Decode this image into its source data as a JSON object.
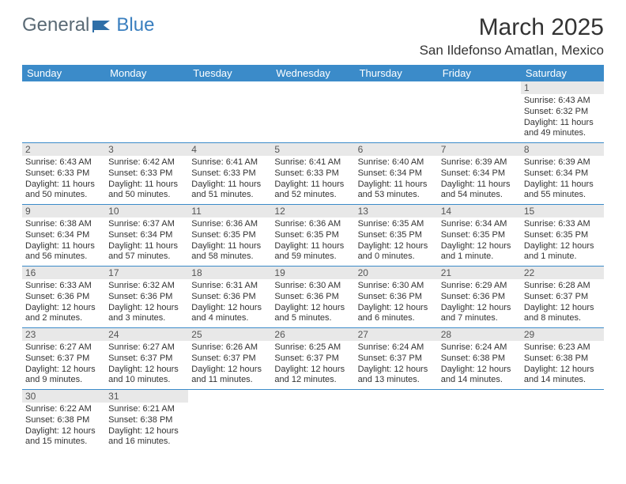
{
  "logo": {
    "general": "General",
    "blue": "Blue"
  },
  "month_title": "March 2025",
  "location": "San Ildefonso Amatlan, Mexico",
  "header_bg": "#3b8bc9",
  "header_fg": "#ffffff",
  "rule_color": "#3b8bc9",
  "daynum_bg": "#e8e8e8",
  "weekdays": [
    "Sunday",
    "Monday",
    "Tuesday",
    "Wednesday",
    "Thursday",
    "Friday",
    "Saturday"
  ],
  "weeks": [
    [
      {
        "n": "",
        "sunrise": "",
        "sunset": "",
        "daylight": ""
      },
      {
        "n": "",
        "sunrise": "",
        "sunset": "",
        "daylight": ""
      },
      {
        "n": "",
        "sunrise": "",
        "sunset": "",
        "daylight": ""
      },
      {
        "n": "",
        "sunrise": "",
        "sunset": "",
        "daylight": ""
      },
      {
        "n": "",
        "sunrise": "",
        "sunset": "",
        "daylight": ""
      },
      {
        "n": "",
        "sunrise": "",
        "sunset": "",
        "daylight": ""
      },
      {
        "n": "1",
        "sunrise": "Sunrise: 6:43 AM",
        "sunset": "Sunset: 6:32 PM",
        "daylight": "Daylight: 11 hours and 49 minutes."
      }
    ],
    [
      {
        "n": "2",
        "sunrise": "Sunrise: 6:43 AM",
        "sunset": "Sunset: 6:33 PM",
        "daylight": "Daylight: 11 hours and 50 minutes."
      },
      {
        "n": "3",
        "sunrise": "Sunrise: 6:42 AM",
        "sunset": "Sunset: 6:33 PM",
        "daylight": "Daylight: 11 hours and 50 minutes."
      },
      {
        "n": "4",
        "sunrise": "Sunrise: 6:41 AM",
        "sunset": "Sunset: 6:33 PM",
        "daylight": "Daylight: 11 hours and 51 minutes."
      },
      {
        "n": "5",
        "sunrise": "Sunrise: 6:41 AM",
        "sunset": "Sunset: 6:33 PM",
        "daylight": "Daylight: 11 hours and 52 minutes."
      },
      {
        "n": "6",
        "sunrise": "Sunrise: 6:40 AM",
        "sunset": "Sunset: 6:34 PM",
        "daylight": "Daylight: 11 hours and 53 minutes."
      },
      {
        "n": "7",
        "sunrise": "Sunrise: 6:39 AM",
        "sunset": "Sunset: 6:34 PM",
        "daylight": "Daylight: 11 hours and 54 minutes."
      },
      {
        "n": "8",
        "sunrise": "Sunrise: 6:39 AM",
        "sunset": "Sunset: 6:34 PM",
        "daylight": "Daylight: 11 hours and 55 minutes."
      }
    ],
    [
      {
        "n": "9",
        "sunrise": "Sunrise: 6:38 AM",
        "sunset": "Sunset: 6:34 PM",
        "daylight": "Daylight: 11 hours and 56 minutes."
      },
      {
        "n": "10",
        "sunrise": "Sunrise: 6:37 AM",
        "sunset": "Sunset: 6:34 PM",
        "daylight": "Daylight: 11 hours and 57 minutes."
      },
      {
        "n": "11",
        "sunrise": "Sunrise: 6:36 AM",
        "sunset": "Sunset: 6:35 PM",
        "daylight": "Daylight: 11 hours and 58 minutes."
      },
      {
        "n": "12",
        "sunrise": "Sunrise: 6:36 AM",
        "sunset": "Sunset: 6:35 PM",
        "daylight": "Daylight: 11 hours and 59 minutes."
      },
      {
        "n": "13",
        "sunrise": "Sunrise: 6:35 AM",
        "sunset": "Sunset: 6:35 PM",
        "daylight": "Daylight: 12 hours and 0 minutes."
      },
      {
        "n": "14",
        "sunrise": "Sunrise: 6:34 AM",
        "sunset": "Sunset: 6:35 PM",
        "daylight": "Daylight: 12 hours and 1 minute."
      },
      {
        "n": "15",
        "sunrise": "Sunrise: 6:33 AM",
        "sunset": "Sunset: 6:35 PM",
        "daylight": "Daylight: 12 hours and 1 minute."
      }
    ],
    [
      {
        "n": "16",
        "sunrise": "Sunrise: 6:33 AM",
        "sunset": "Sunset: 6:36 PM",
        "daylight": "Daylight: 12 hours and 2 minutes."
      },
      {
        "n": "17",
        "sunrise": "Sunrise: 6:32 AM",
        "sunset": "Sunset: 6:36 PM",
        "daylight": "Daylight: 12 hours and 3 minutes."
      },
      {
        "n": "18",
        "sunrise": "Sunrise: 6:31 AM",
        "sunset": "Sunset: 6:36 PM",
        "daylight": "Daylight: 12 hours and 4 minutes."
      },
      {
        "n": "19",
        "sunrise": "Sunrise: 6:30 AM",
        "sunset": "Sunset: 6:36 PM",
        "daylight": "Daylight: 12 hours and 5 minutes."
      },
      {
        "n": "20",
        "sunrise": "Sunrise: 6:30 AM",
        "sunset": "Sunset: 6:36 PM",
        "daylight": "Daylight: 12 hours and 6 minutes."
      },
      {
        "n": "21",
        "sunrise": "Sunrise: 6:29 AM",
        "sunset": "Sunset: 6:36 PM",
        "daylight": "Daylight: 12 hours and 7 minutes."
      },
      {
        "n": "22",
        "sunrise": "Sunrise: 6:28 AM",
        "sunset": "Sunset: 6:37 PM",
        "daylight": "Daylight: 12 hours and 8 minutes."
      }
    ],
    [
      {
        "n": "23",
        "sunrise": "Sunrise: 6:27 AM",
        "sunset": "Sunset: 6:37 PM",
        "daylight": "Daylight: 12 hours and 9 minutes."
      },
      {
        "n": "24",
        "sunrise": "Sunrise: 6:27 AM",
        "sunset": "Sunset: 6:37 PM",
        "daylight": "Daylight: 12 hours and 10 minutes."
      },
      {
        "n": "25",
        "sunrise": "Sunrise: 6:26 AM",
        "sunset": "Sunset: 6:37 PM",
        "daylight": "Daylight: 12 hours and 11 minutes."
      },
      {
        "n": "26",
        "sunrise": "Sunrise: 6:25 AM",
        "sunset": "Sunset: 6:37 PM",
        "daylight": "Daylight: 12 hours and 12 minutes."
      },
      {
        "n": "27",
        "sunrise": "Sunrise: 6:24 AM",
        "sunset": "Sunset: 6:37 PM",
        "daylight": "Daylight: 12 hours and 13 minutes."
      },
      {
        "n": "28",
        "sunrise": "Sunrise: 6:24 AM",
        "sunset": "Sunset: 6:38 PM",
        "daylight": "Daylight: 12 hours and 14 minutes."
      },
      {
        "n": "29",
        "sunrise": "Sunrise: 6:23 AM",
        "sunset": "Sunset: 6:38 PM",
        "daylight": "Daylight: 12 hours and 14 minutes."
      }
    ],
    [
      {
        "n": "30",
        "sunrise": "Sunrise: 6:22 AM",
        "sunset": "Sunset: 6:38 PM",
        "daylight": "Daylight: 12 hours and 15 minutes."
      },
      {
        "n": "31",
        "sunrise": "Sunrise: 6:21 AM",
        "sunset": "Sunset: 6:38 PM",
        "daylight": "Daylight: 12 hours and 16 minutes."
      },
      {
        "n": "",
        "sunrise": "",
        "sunset": "",
        "daylight": ""
      },
      {
        "n": "",
        "sunrise": "",
        "sunset": "",
        "daylight": ""
      },
      {
        "n": "",
        "sunrise": "",
        "sunset": "",
        "daylight": ""
      },
      {
        "n": "",
        "sunrise": "",
        "sunset": "",
        "daylight": ""
      },
      {
        "n": "",
        "sunrise": "",
        "sunset": "",
        "daylight": ""
      }
    ]
  ]
}
